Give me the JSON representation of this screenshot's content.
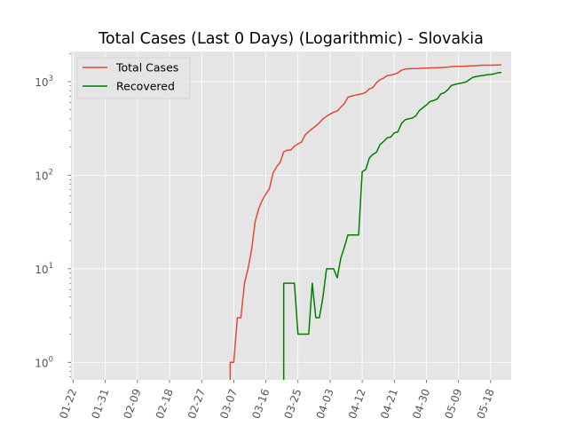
{
  "chart_data": {
    "type": "line",
    "title": "Total Cases (Last 0 Days) (Logarithmic) - Slovakia",
    "xlabel": "",
    "ylabel": "",
    "yscale": "log",
    "ylim": [
      0.65,
      2100
    ],
    "y_ticks": [
      {
        "value": 1,
        "base": "10",
        "exp": "0"
      },
      {
        "value": 10,
        "base": "10",
        "exp": "1"
      },
      {
        "value": 100,
        "base": "10",
        "exp": "2"
      },
      {
        "value": 1000,
        "base": "10",
        "exp": "3"
      }
    ],
    "x_ticks": [
      "01-22",
      "01-31",
      "02-09",
      "02-18",
      "02-27",
      "03-07",
      "03-16",
      "03-25",
      "04-03",
      "04-12",
      "04-21",
      "04-30",
      "05-09",
      "05-18"
    ],
    "x_start": "01-22",
    "grid": true,
    "legend": "top-left",
    "series": [
      {
        "name": "Total Cases",
        "color": "#E24A33",
        "points": [
          [
            "03-06",
            0.5
          ],
          [
            "03-06",
            1
          ],
          [
            "03-07",
            1
          ],
          [
            "03-08",
            3
          ],
          [
            "03-09",
            3
          ],
          [
            "03-10",
            7
          ],
          [
            "03-11",
            10
          ],
          [
            "03-12",
            16
          ],
          [
            "03-13",
            32
          ],
          [
            "03-14",
            44
          ],
          [
            "03-15",
            54
          ],
          [
            "03-16",
            63
          ],
          [
            "03-17",
            72
          ],
          [
            "03-18",
            105
          ],
          [
            "03-19",
            123
          ],
          [
            "03-20",
            137
          ],
          [
            "03-21",
            178
          ],
          [
            "03-22",
            185
          ],
          [
            "03-23",
            186
          ],
          [
            "03-24",
            204
          ],
          [
            "03-25",
            216
          ],
          [
            "03-26",
            226
          ],
          [
            "03-27",
            269
          ],
          [
            "03-28",
            292
          ],
          [
            "03-29",
            314
          ],
          [
            "03-30",
            336
          ],
          [
            "03-31",
            363
          ],
          [
            "04-01",
            400
          ],
          [
            "04-02",
            426
          ],
          [
            "04-03",
            450
          ],
          [
            "04-04",
            471
          ],
          [
            "04-05",
            485
          ],
          [
            "04-06",
            534
          ],
          [
            "04-07",
            581
          ],
          [
            "04-08",
            682
          ],
          [
            "04-09",
            701
          ],
          [
            "04-10",
            715
          ],
          [
            "04-11",
            728
          ],
          [
            "04-12",
            742
          ],
          [
            "04-13",
            769
          ],
          [
            "04-14",
            835
          ],
          [
            "04-15",
            863
          ],
          [
            "04-16",
            977
          ],
          [
            "04-17",
            1049
          ],
          [
            "04-18",
            1089
          ],
          [
            "04-19",
            1161
          ],
          [
            "04-20",
            1173
          ],
          [
            "04-21",
            1199
          ],
          [
            "04-22",
            1244
          ],
          [
            "04-23",
            1325
          ],
          [
            "04-24",
            1360
          ],
          [
            "04-25",
            1373
          ],
          [
            "04-26",
            1379
          ],
          [
            "04-27",
            1381
          ],
          [
            "04-28",
            1384
          ],
          [
            "04-29",
            1391
          ],
          [
            "04-30",
            1396
          ],
          [
            "05-01",
            1403
          ],
          [
            "05-02",
            1405
          ],
          [
            "05-03",
            1406
          ],
          [
            "05-04",
            1413
          ],
          [
            "05-05",
            1421
          ],
          [
            "05-06",
            1429
          ],
          [
            "05-07",
            1445
          ],
          [
            "05-08",
            1455
          ],
          [
            "05-09",
            1457
          ],
          [
            "05-10",
            1457
          ],
          [
            "05-11",
            1466
          ],
          [
            "05-12",
            1469
          ],
          [
            "05-13",
            1477
          ],
          [
            "05-14",
            1480
          ],
          [
            "05-15",
            1493
          ],
          [
            "05-16",
            1495
          ],
          [
            "05-17",
            1495
          ],
          [
            "05-18",
            1496
          ],
          [
            "05-19",
            1502
          ],
          [
            "05-20",
            1504
          ],
          [
            "05-21",
            1509
          ]
        ]
      },
      {
        "name": "Recovered",
        "color": "#008000",
        "points": [
          [
            "03-21",
            0.5
          ],
          [
            "03-21",
            7
          ],
          [
            "03-22",
            7
          ],
          [
            "03-23",
            7
          ],
          [
            "03-24",
            7
          ],
          [
            "03-25",
            2
          ],
          [
            "03-26",
            2
          ],
          [
            "03-27",
            2
          ],
          [
            "03-28",
            2
          ],
          [
            "03-29",
            7
          ],
          [
            "03-30",
            3
          ],
          [
            "03-31",
            3
          ],
          [
            "04-01",
            5
          ],
          [
            "04-02",
            10
          ],
          [
            "04-03",
            10
          ],
          [
            "04-04",
            10
          ],
          [
            "04-05",
            8
          ],
          [
            "04-06",
            13
          ],
          [
            "04-07",
            17
          ],
          [
            "04-08",
            23
          ],
          [
            "04-09",
            23
          ],
          [
            "04-10",
            23
          ],
          [
            "04-11",
            23
          ],
          [
            "04-12",
            109
          ],
          [
            "04-13",
            115
          ],
          [
            "04-14",
            153
          ],
          [
            "04-15",
            167
          ],
          [
            "04-16",
            176
          ],
          [
            "04-17",
            213
          ],
          [
            "04-18",
            229
          ],
          [
            "04-19",
            251
          ],
          [
            "04-20",
            256
          ],
          [
            "04-21",
            283
          ],
          [
            "04-22",
            291
          ],
          [
            "04-23",
            356
          ],
          [
            "04-24",
            390
          ],
          [
            "04-25",
            401
          ],
          [
            "04-26",
            407
          ],
          [
            "04-27",
            430
          ],
          [
            "04-28",
            490
          ],
          [
            "04-29",
            526
          ],
          [
            "04-30",
            563
          ],
          [
            "05-01",
            612
          ],
          [
            "05-02",
            628
          ],
          [
            "05-03",
            651
          ],
          [
            "05-04",
            736
          ],
          [
            "05-05",
            761
          ],
          [
            "05-06",
            819
          ],
          [
            "05-07",
            911
          ],
          [
            "05-08",
            933
          ],
          [
            "05-09",
            952
          ],
          [
            "05-10",
            970
          ],
          [
            "05-11",
            988
          ],
          [
            "05-12",
            1046
          ],
          [
            "05-13",
            1111
          ],
          [
            "05-14",
            1134
          ],
          [
            "05-15",
            1153
          ],
          [
            "05-16",
            1165
          ],
          [
            "05-17",
            1183
          ],
          [
            "05-18",
            1194
          ],
          [
            "05-19",
            1211
          ],
          [
            "05-20",
            1242
          ],
          [
            "05-21",
            1252
          ]
        ]
      }
    ]
  }
}
